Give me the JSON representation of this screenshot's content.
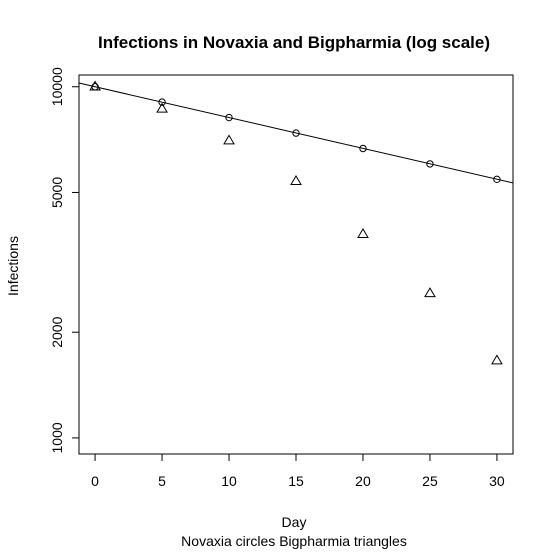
{
  "chart_data": {
    "type": "scatter",
    "title": "Infections in Novaxia and Bigpharmia (log scale)",
    "xlabel": "Day",
    "ylabel": "Infections",
    "caption": "Novaxia circles   Bigpharmia triangles",
    "xlim": [
      -1.2,
      31.2
    ],
    "ylim": [
      900,
      10800
    ],
    "y_scale": "log",
    "x_ticks": [
      0,
      5,
      10,
      15,
      20,
      25,
      30
    ],
    "x_tick_labels": [
      "0",
      "5",
      "10",
      "15",
      "20",
      "25",
      "30"
    ],
    "y_ticks": [
      1000,
      2000,
      5000,
      10000
    ],
    "y_tick_labels": [
      "1000",
      "2000",
      "5000",
      "10000"
    ],
    "series": [
      {
        "name": "Novaxia",
        "marker": "circle",
        "x": [
          0,
          5,
          10,
          15,
          20,
          25,
          30
        ],
        "y": [
          10000,
          9040,
          8170,
          7380,
          6670,
          6030,
          5450
        ]
      },
      {
        "name": "Bigpharmia",
        "marker": "triangle",
        "x": [
          0,
          5,
          10,
          15,
          20,
          25,
          30
        ],
        "y": [
          10000,
          8650,
          7020,
          5380,
          3800,
          2580,
          1660
        ]
      }
    ],
    "fit_line": {
      "series": "Novaxia",
      "intercept_day0": 10000,
      "daily_factor": 0.98
    },
    "grid": false,
    "legend": "none",
    "color": "#000000"
  }
}
